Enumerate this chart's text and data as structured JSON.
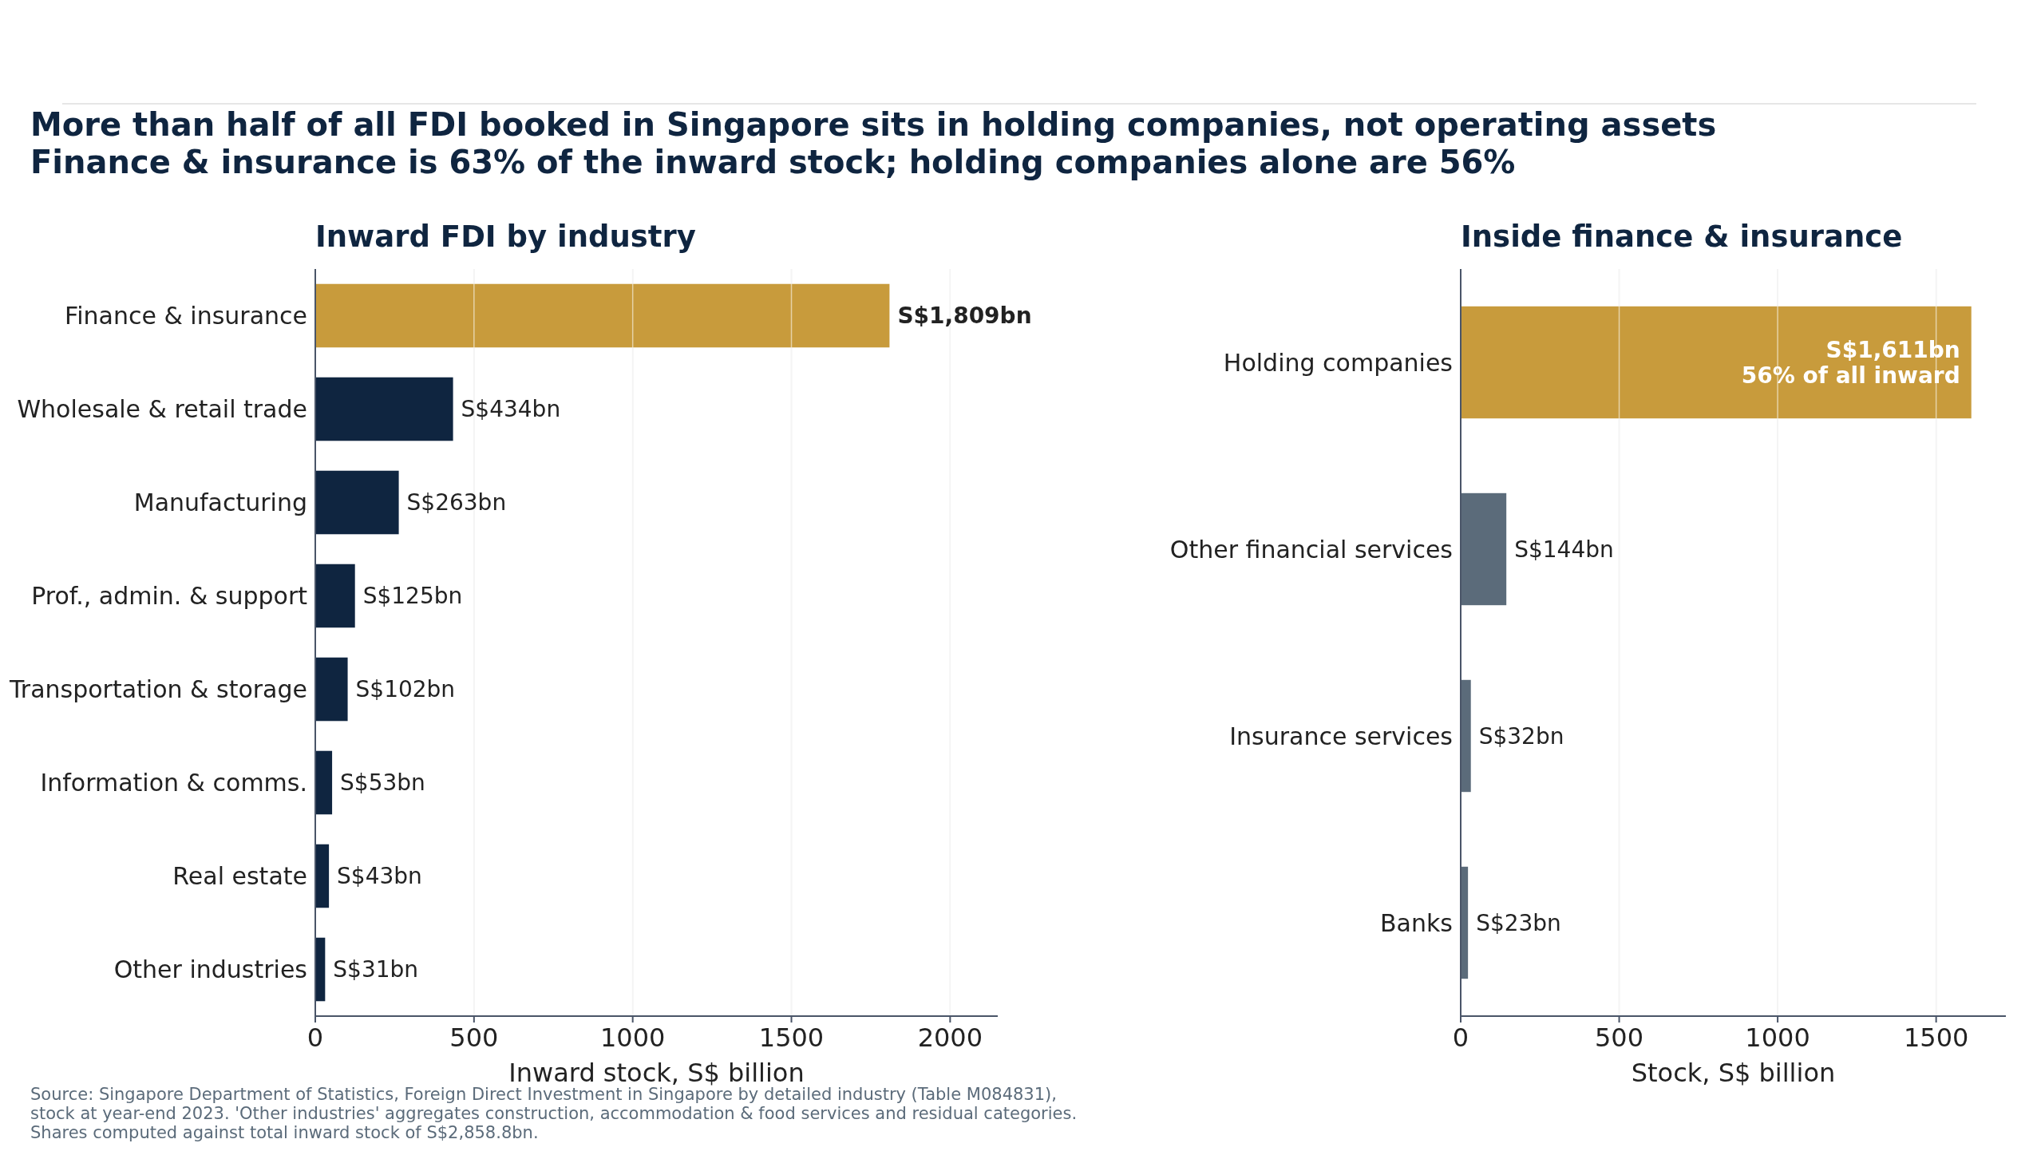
{
  "chart_data": [
    {
      "type": "bar",
      "orientation": "horizontal",
      "title": "Inward FDI by industry",
      "xlabel": "Inward stock, S$ billion",
      "categories": [
        "Finance & insurance",
        "Wholesale & retail trade",
        "Manufacturing",
        "Prof., admin. & support",
        "Transportation & storage",
        "Information & comms.",
        "Real estate",
        "Other industries"
      ],
      "values": [
        1809,
        434,
        263,
        125,
        102,
        53,
        43,
        31
      ],
      "colors": [
        "#c89b3c",
        "#0f2540",
        "#0f2540",
        "#0f2540",
        "#0f2540",
        "#0f2540",
        "#0f2540",
        "#0f2540"
      ],
      "value_labels": [
        "S$1,809bn",
        "S$434bn",
        "S$263bn",
        "S$125bn",
        "S$102bn",
        "S$53bn",
        "S$43bn",
        "S$31bn"
      ],
      "xlim": [
        0,
        2150
      ],
      "xticks": [
        0,
        500,
        1000,
        1500,
        2000
      ],
      "grid": "x",
      "annotations": [
        "More than half of all FDI booked in Singapore sits in holding companies, not operating assets",
        "Finance & insurance is 63% of the inward stock; holding companies alone are 56%",
        "Source: Singapore Department of Statistics, Foreign Direct Investment in Singapore by detailed industry (Table M084831), stock at year-end 2023. 'Other industries' aggregates construction, accommodation & food services and residual categories. Shares computed against total inward stock of S$2,858.8bn."
      ]
    },
    {
      "type": "bar",
      "orientation": "horizontal",
      "title": "Inside finance & insurance",
      "xlabel": "Stock, S$ billion",
      "categories": [
        "Holding companies",
        "Other financial services",
        "Insurance services",
        "Banks"
      ],
      "values": [
        1611,
        144,
        32,
        23
      ],
      "colors": [
        "#c89b3c",
        "#5b6b7a",
        "#5b6b7a",
        "#5b6b7a"
      ],
      "value_labels": [
        "S$1,611bn",
        "S$144bn",
        "S$32bn",
        "S$23bn"
      ],
      "annotations": [
        {
          "text": "56% of all inward",
          "x": 1611,
          "y": "Holding companies"
        }
      ],
      "xlim": [
        0,
        1720
      ],
      "xticks": [
        0,
        500,
        1000,
        1500
      ],
      "grid": "x"
    }
  ]
}
